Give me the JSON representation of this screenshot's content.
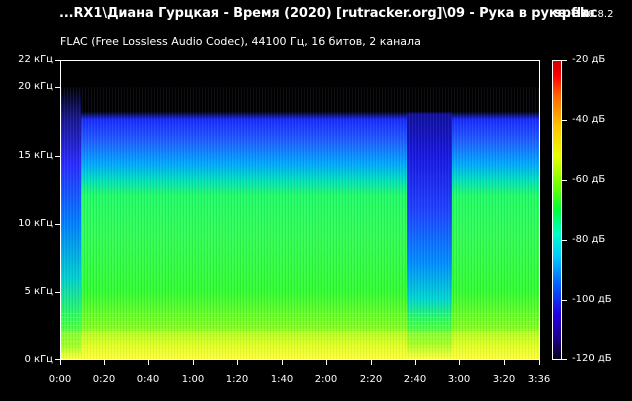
{
  "window": {
    "title": "...RX1\\Диана Гурцкая - Время (2020) [rutracker.org]\\09 - Рука в руке.flac",
    "app_name": "spek",
    "app_version": "0.8.2",
    "subtitle": "FLAC (Free Lossless Audio Codec), 44100 Гц, 16 битов, 2 канала"
  },
  "axes": {
    "y_labels": [
      "22 кГц",
      "20 кГц",
      "15 кГц",
      "10 кГц",
      "5 кГц",
      "0 кГц"
    ],
    "x_labels": [
      "0:00",
      "0:20",
      "0:40",
      "1:00",
      "1:20",
      "1:40",
      "2:00",
      "2:20",
      "2:40",
      "3:00",
      "3:20",
      "3:36"
    ],
    "colorbar_labels": [
      "-20 дБ",
      "-40 дБ",
      "-60 дБ",
      "-80 дБ",
      "-100 дБ",
      "-120 дБ"
    ]
  },
  "chart_data": {
    "type": "heatmap",
    "x_unit": "time (m:ss)",
    "x_range": [
      "0:00",
      "3:36"
    ],
    "y_unit": "kHz",
    "y_range": [
      0,
      22
    ],
    "color_range_db": [
      -120,
      -20
    ],
    "cutoff_khz": 20,
    "colors": {
      "loud": "#ffff00",
      "mid": "#33ff33",
      "low": "#00ccff",
      "quiet": "#1a2bff",
      "silent": "#000000"
    }
  }
}
